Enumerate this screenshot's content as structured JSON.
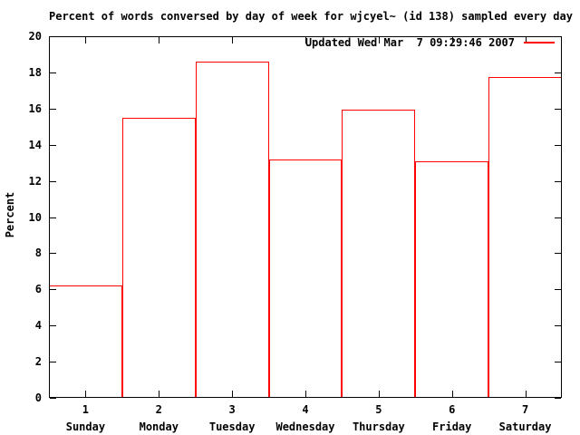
{
  "chart_data": {
    "type": "bar",
    "bar_style": "outline-boxes",
    "title": "Percent of words conversed by day of week for wjcyel~ (id 138) sampled every day",
    "xlabel": "",
    "ylabel": "Percent",
    "ylim": [
      0,
      20
    ],
    "y_ticks": [
      0,
      2,
      4,
      6,
      8,
      10,
      12,
      14,
      16,
      18,
      20
    ],
    "x_positions": [
      "1",
      "2",
      "3",
      "4",
      "5",
      "6",
      "7"
    ],
    "categories": [
      "Sunday",
      "Monday",
      "Tuesday",
      "Wednesday",
      "Thursday",
      "Friday",
      "Saturday"
    ],
    "values": [
      6.2,
      15.5,
      18.6,
      13.2,
      15.95,
      13.1,
      17.75
    ],
    "legend_label": "Updated Wed Mar  7 09:29:46 2007",
    "legend_position": "top-right-inside",
    "grid": false
  },
  "colors": {
    "series": "#ff0000",
    "axis": "#000000",
    "text": "#000000",
    "background": "#ffffff"
  }
}
